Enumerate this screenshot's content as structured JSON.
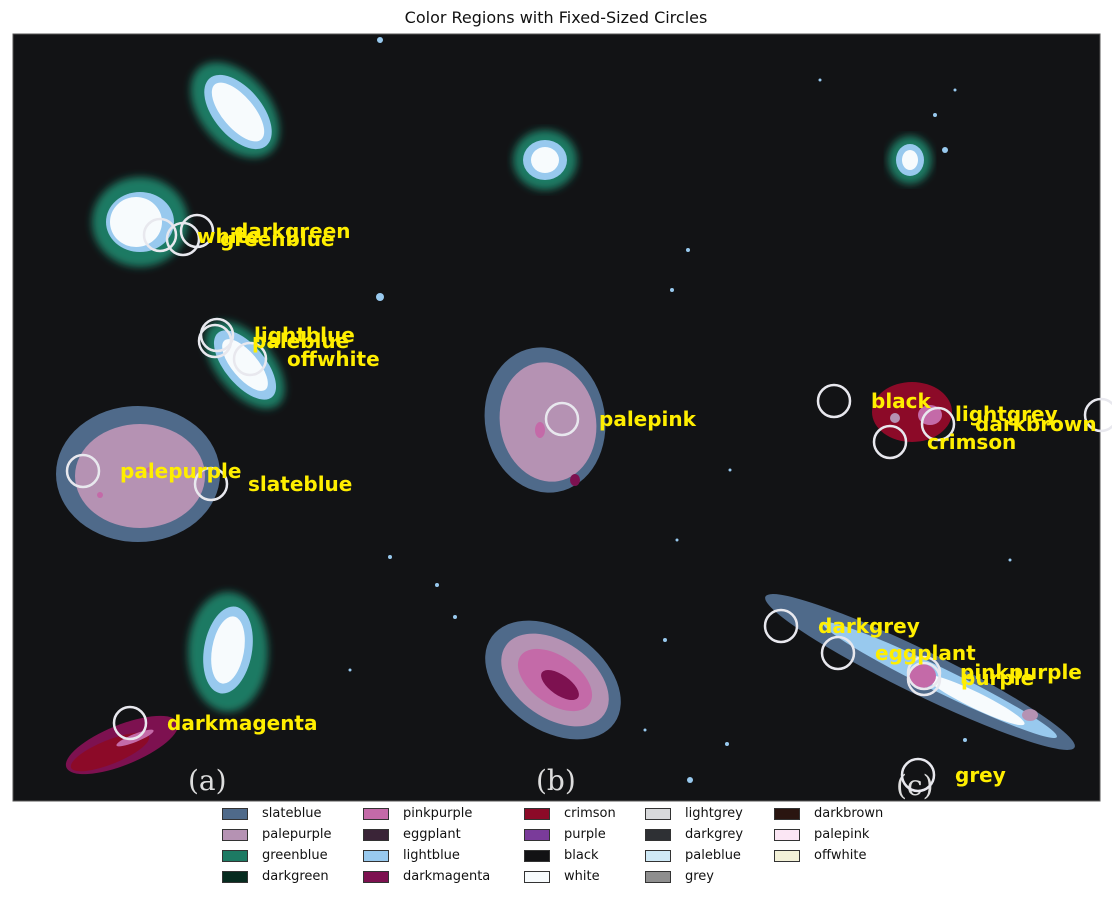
{
  "title": "Color Regions with Fixed-Sized Circles",
  "panel_labels": [
    "(a)",
    "(b)",
    "(c)"
  ],
  "annotations": [
    {
      "label": "darkgreen"
    },
    {
      "label": "white"
    },
    {
      "label": "greenblue"
    },
    {
      "label": "lightblue"
    },
    {
      "label": "paleblue"
    },
    {
      "label": "offwhite"
    },
    {
      "label": "palepurple"
    },
    {
      "label": "slateblue"
    },
    {
      "label": "darkmagenta"
    },
    {
      "label": "palepink"
    },
    {
      "label": "black"
    },
    {
      "label": "lightgrey"
    },
    {
      "label": "darkbrown"
    },
    {
      "label": "crimson"
    },
    {
      "label": "darkgrey"
    },
    {
      "label": "eggplant"
    },
    {
      "label": "pinkpurple"
    },
    {
      "label": "purple"
    },
    {
      "label": "grey"
    }
  ],
  "legend": [
    {
      "label": "slateblue",
      "color": "#4f6a8a"
    },
    {
      "label": "palepurple",
      "color": "#b592b3"
    },
    {
      "label": "greenblue",
      "color": "#1d7a63"
    },
    {
      "label": "darkgreen",
      "color": "#062b1f"
    },
    {
      "label": "pinkpurple",
      "color": "#c46aa8"
    },
    {
      "label": "eggplant",
      "color": "#3a2437"
    },
    {
      "label": "lightblue",
      "color": "#98c9ee"
    },
    {
      "label": "darkmagenta",
      "color": "#7d1150"
    },
    {
      "label": "crimson",
      "color": "#8c0a28"
    },
    {
      "label": "purple",
      "color": "#7a3b9a"
    },
    {
      "label": "black",
      "color": "#121214"
    },
    {
      "label": "white",
      "color": "#f7fbfd"
    },
    {
      "label": "lightgrey",
      "color": "#d8d9db"
    },
    {
      "label": "darkgrey",
      "color": "#2e3034"
    },
    {
      "label": "paleblue",
      "color": "#cfe9f6"
    },
    {
      "label": "grey",
      "color": "#8e8e8e"
    },
    {
      "label": "darkbrown",
      "color": "#2a1510"
    },
    {
      "label": "palepink",
      "color": "#fbe6f4"
    },
    {
      "label": "offwhite",
      "color": "#f3f1d8"
    }
  ],
  "colors": {
    "background": "#121315",
    "annotation_text": "#ffee00",
    "circle_stroke": "#e8e8ee"
  }
}
